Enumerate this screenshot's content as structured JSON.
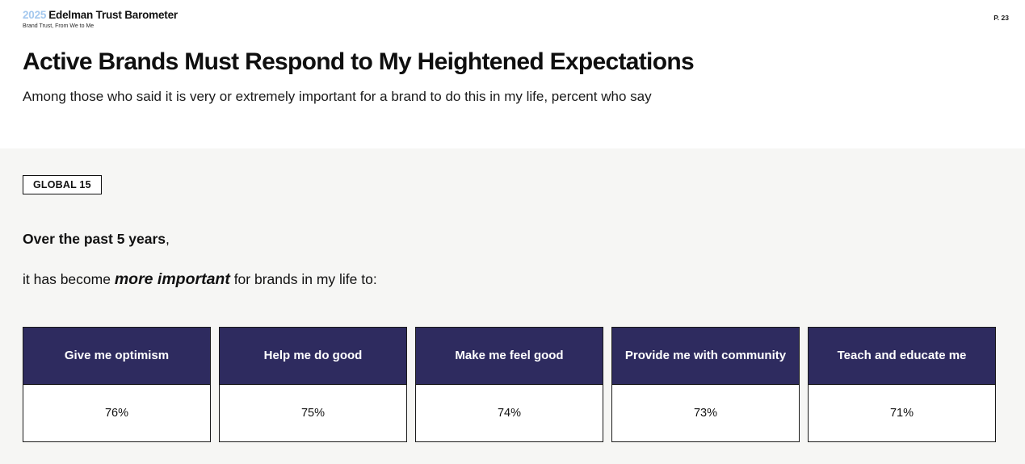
{
  "colors": {
    "header_navy": "#2e2b5f",
    "logo_year_blue": "#a4c8ee",
    "section_gray": "#f6f6f4",
    "card_border": "#1a1a1a"
  },
  "header": {
    "year": "2025",
    "brand": "Edelman Trust Barometer",
    "tagline": "Brand Trust, From We to Me",
    "page_number": "P. 23"
  },
  "title": "Active Brands Must Respond to My Heightened Expectations",
  "subtitle": "Among those who said it is very or extremely important for a brand to do this in my life, percent who say",
  "section": {
    "badge": "GLOBAL 15",
    "statement": {
      "line1_bold": "Over the past 5 years",
      "line1_rest": ",",
      "line2_pre": "it has become ",
      "line2_em": "more important",
      "line2_post": " for brands in my life to:"
    }
  },
  "chart_data": {
    "type": "table",
    "title": "it has become more important for brands in my life to:",
    "subtitle": "Among those who said it is very or extremely important for a brand to do this in my life, percent who say",
    "categories": [
      "Give me optimism",
      "Help me do good",
      "Make me feel good",
      "Provide me with community",
      "Teach and educate me"
    ],
    "values": [
      76,
      75,
      74,
      73,
      71
    ],
    "value_labels": [
      "76%",
      "75%",
      "74%",
      "73%",
      "71%"
    ],
    "unit": "%",
    "scope": "GLOBAL 15",
    "layout": "five equal cards in a row, navy header cell with white label, white value cell below"
  }
}
